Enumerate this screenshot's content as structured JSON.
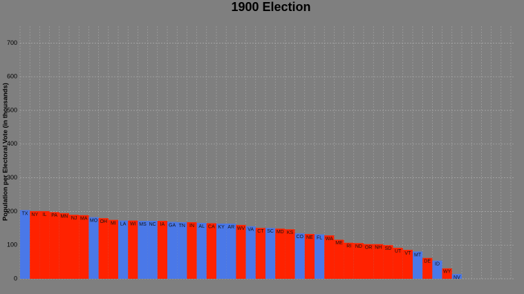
{
  "chart_data": {
    "type": "bar",
    "title": "1900 Election",
    "y_label": "Population per Electoral Vote (in thousands)",
    "categories": [
      "TX",
      "NY",
      "IL",
      "PA",
      "MN",
      "NJ",
      "MA",
      "MO",
      "OH",
      "MI",
      "LA",
      "WI",
      "MS",
      "NC",
      "IA",
      "GA",
      "TN",
      "IN",
      "AL",
      "CA",
      "KY",
      "AR",
      "WV",
      "VA",
      "CT",
      "SC",
      "MD",
      "KS",
      "CO",
      "NE",
      "FL",
      "WA",
      "ME",
      "RI",
      "ND",
      "OR",
      "NH",
      "SD",
      "UT",
      "VT",
      "MT",
      "DE",
      "ID",
      "WY",
      "NV"
    ],
    "values": [
      204,
      201,
      201,
      198,
      195,
      190,
      189,
      183,
      180,
      175,
      173,
      173,
      172,
      172,
      172,
      169,
      168,
      168,
      166,
      165,
      164,
      164,
      160,
      156,
      151,
      151,
      149,
      147,
      135,
      133,
      132,
      129,
      116,
      107,
      106,
      103,
      103,
      100,
      92,
      86,
      81,
      62,
      54,
      31,
      14
    ],
    "colors": [
      "#4a78e8",
      "#ff2200",
      "#ff2200",
      "#ff2200",
      "#ff2200",
      "#ff2200",
      "#ff2200",
      "#4a78e8",
      "#ff2200",
      "#ff2200",
      "#4a78e8",
      "#ff2200",
      "#4a78e8",
      "#4a78e8",
      "#ff2200",
      "#4a78e8",
      "#4a78e8",
      "#ff2200",
      "#4a78e8",
      "#ff2200",
      "#4a78e8",
      "#4a78e8",
      "#ff2200",
      "#4a78e8",
      "#ff2200",
      "#4a78e8",
      "#ff2200",
      "#ff2200",
      "#4a78e8",
      "#ff2200",
      "#4a78e8",
      "#ff2200",
      "#ff2200",
      "#ff2200",
      "#ff2200",
      "#ff2200",
      "#ff2200",
      "#ff2200",
      "#ff2200",
      "#ff2200",
      "#4a78e8",
      "#ff2200",
      "#4a78e8",
      "#ff2200",
      "#4a78e8"
    ],
    "ylim": [
      0,
      750
    ],
    "yticks": [
      0,
      100,
      200,
      300,
      400,
      500,
      600,
      700
    ],
    "grid": true
  }
}
